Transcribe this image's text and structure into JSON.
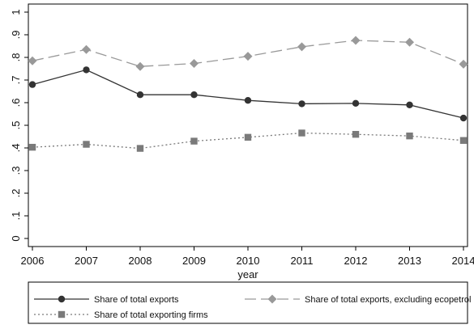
{
  "chart_data": {
    "type": "line",
    "title": "",
    "xlabel": "year",
    "ylabel": "",
    "categories": [
      "2006",
      "2007",
      "2008",
      "2009",
      "2010",
      "2011",
      "2012",
      "2013",
      "2014"
    ],
    "ylim": [
      0,
      1
    ],
    "yticks": [
      "0",
      ".1",
      ".2",
      ".3",
      ".4",
      ".5",
      ".6",
      ".7",
      ".8",
      ".9",
      "1"
    ],
    "grid": false,
    "legend_position": "bottom",
    "series": [
      {
        "name": "Share of total exports",
        "values": [
          0.68,
          0.745,
          0.635,
          0.635,
          0.61,
          0.595,
          0.597,
          0.59,
          0.532
        ],
        "color": "#333333",
        "dash": "solid",
        "marker": "circle"
      },
      {
        "name": "Share of total exports, excluding ecopetrol",
        "values": [
          0.785,
          0.835,
          0.76,
          0.773,
          0.805,
          0.847,
          0.875,
          0.867,
          0.77
        ],
        "color": "#999999",
        "dash": "longdash",
        "marker": "diamond"
      },
      {
        "name": "Share of total exporting firms",
        "values": [
          0.403,
          0.416,
          0.398,
          0.43,
          0.447,
          0.466,
          0.46,
          0.453,
          0.433
        ],
        "color": "#7a7a7a",
        "dash": "dotted",
        "marker": "square"
      }
    ]
  }
}
